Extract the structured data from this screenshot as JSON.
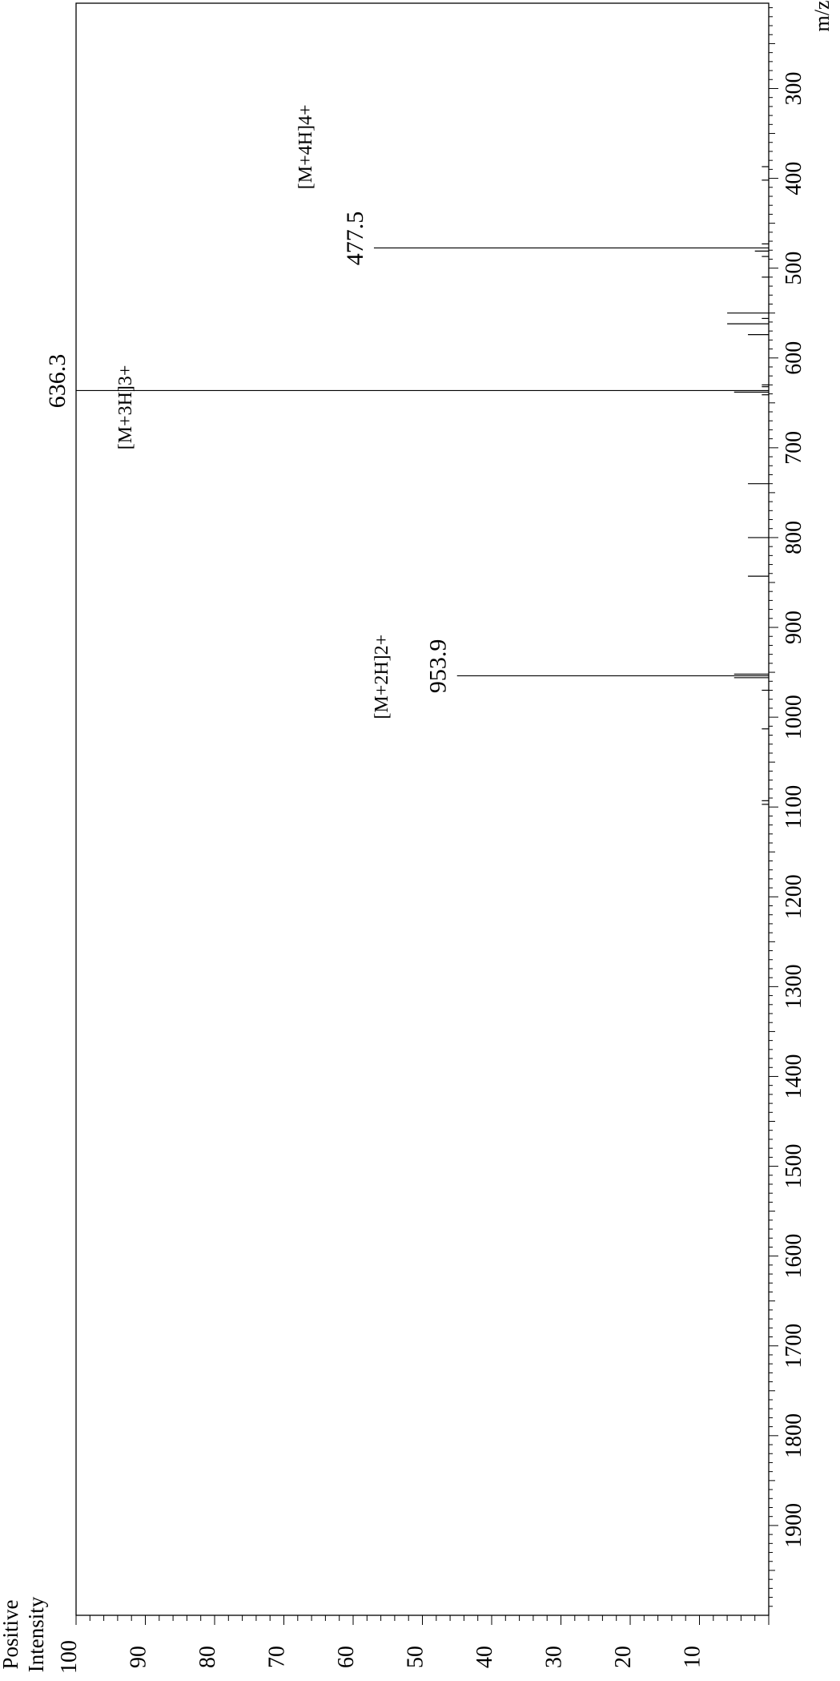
{
  "chart_data": {
    "type": "bar",
    "orientation": "rotated-90",
    "xlabel": "m/z",
    "ylabel_lines": [
      "Positive",
      "Intensity"
    ],
    "xlim": [
      205,
      2000
    ],
    "ylim": [
      0,
      100
    ],
    "x_ticks": [
      300,
      400,
      500,
      600,
      700,
      800,
      900,
      1000,
      1100,
      1200,
      1300,
      1400,
      1500,
      1600,
      1700,
      1800,
      1900
    ],
    "y_ticks": [
      10,
      20,
      30,
      40,
      50,
      60,
      70,
      80,
      90,
      100
    ],
    "peaks": [
      {
        "mz": 477.5,
        "intensity": 57
      },
      {
        "mz": 636.3,
        "intensity": 100
      },
      {
        "mz": 953.9,
        "intensity": 45
      },
      {
        "mz": 387,
        "intensity": 1
      },
      {
        "mz": 402,
        "intensity": 1
      },
      {
        "mz": 473,
        "intensity": 1
      },
      {
        "mz": 481,
        "intensity": 2
      },
      {
        "mz": 487,
        "intensity": 1
      },
      {
        "mz": 510,
        "intensity": 1
      },
      {
        "mz": 550,
        "intensity": 6
      },
      {
        "mz": 556,
        "intensity": 1
      },
      {
        "mz": 562,
        "intensity": 6
      },
      {
        "mz": 574,
        "intensity": 3
      },
      {
        "mz": 630,
        "intensity": 1
      },
      {
        "mz": 632,
        "intensity": 1
      },
      {
        "mz": 638,
        "intensity": 5
      },
      {
        "mz": 641,
        "intensity": 1
      },
      {
        "mz": 740,
        "intensity": 3
      },
      {
        "mz": 800,
        "intensity": 3
      },
      {
        "mz": 843,
        "intensity": 3
      },
      {
        "mz": 952,
        "intensity": 5
      },
      {
        "mz": 956,
        "intensity": 5
      },
      {
        "mz": 970,
        "intensity": 1
      },
      {
        "mz": 1013,
        "intensity": 1
      },
      {
        "mz": 1093,
        "intensity": 1
      },
      {
        "mz": 1097,
        "intensity": 1
      }
    ],
    "peak_labels": [
      {
        "mz": 477.5,
        "text": "477.5"
      },
      {
        "mz": 636.3,
        "text": "636.3"
      },
      {
        "mz": 953.9,
        "text": "953.9"
      }
    ],
    "annotations": [
      {
        "text": "[M+4H]4+",
        "mz": 365,
        "intensity": 66
      },
      {
        "text": "[M+3H]3+",
        "mz": 655,
        "intensity": 92
      },
      {
        "text": "[M+2H]2+",
        "mz": 955,
        "intensity": 55
      }
    ]
  }
}
